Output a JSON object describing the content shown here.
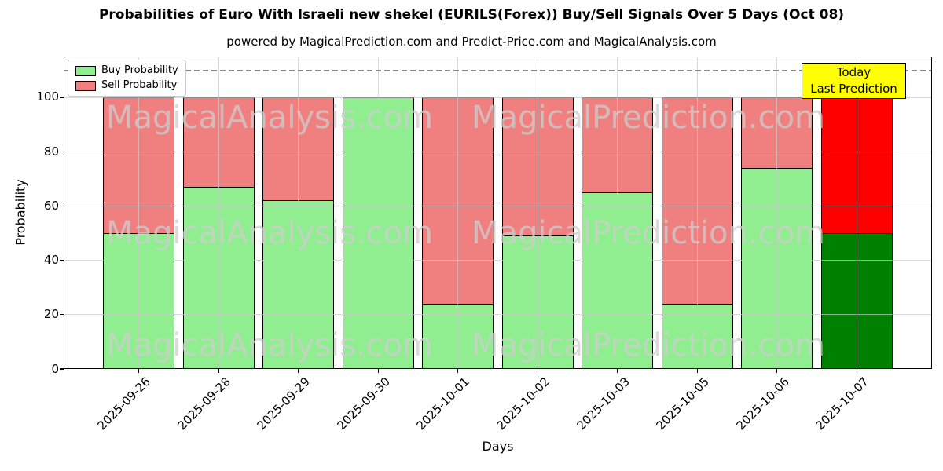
{
  "chart_data": {
    "type": "bar",
    "stacked": true,
    "title": "Probabilities of Euro With Israeli new shekel (EURILS(Forex)) Buy/Sell Signals Over 5 Days (Oct 08)",
    "subtitle": "powered by MagicalPrediction.com and Predict-Price.com and MagicalAnalysis.com",
    "xlabel": "Days",
    "ylabel": "Probability",
    "categories": [
      "2025-09-26",
      "2025-09-28",
      "2025-09-29",
      "2025-09-30",
      "2025-10-01",
      "2025-10-02",
      "2025-10-03",
      "2025-10-05",
      "2025-10-06",
      "2025-10-07"
    ],
    "series": [
      {
        "name": "Buy Probability",
        "color": "#90EE90",
        "today_color": "#008000",
        "values": [
          50,
          67,
          62,
          100,
          24,
          49,
          65,
          24,
          74,
          50
        ]
      },
      {
        "name": "Sell Probability",
        "color": "#F08080",
        "today_color": "#FF0000",
        "values": [
          50,
          33,
          38,
          0,
          76,
          51,
          35,
          76,
          26,
          50
        ]
      }
    ],
    "ylim": [
      0,
      115
    ],
    "yticks": [
      0,
      20,
      40,
      60,
      80,
      100
    ],
    "dashed_line_y": 110,
    "grid": true,
    "legend_position": "upper-left",
    "annotation": {
      "line1": "Today",
      "line2": "Last Prediction",
      "bg_color": "#FFFF00"
    },
    "watermarks": [
      "MagicalAnalysis.com",
      "MagicalPrediction.com"
    ]
  }
}
